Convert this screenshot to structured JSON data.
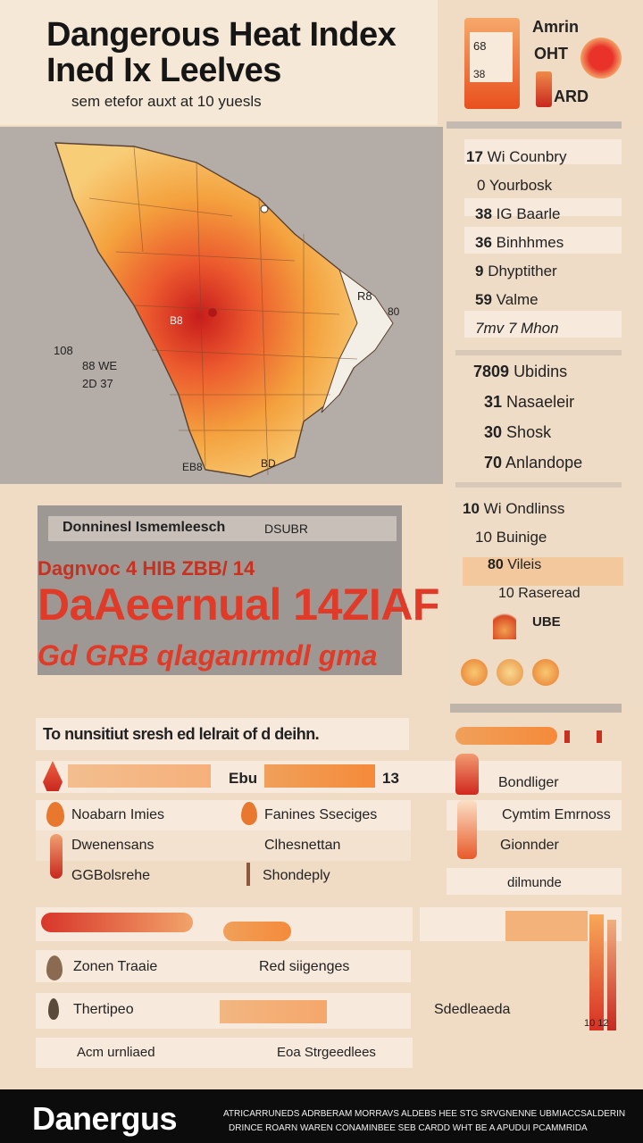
{
  "header": {
    "title_line1": "Dangerous Heat Index",
    "title_line2": "Ined Ix Leelves",
    "subtitle": "sem etefor auxt at 10 yuesls",
    "badge_top": "Amrin",
    "badge_mid": "OHT",
    "badge_bottom": "ARD",
    "badge_nums": [
      "68",
      "38"
    ]
  },
  "map": {
    "labels": [
      "108",
      "88 WE",
      "2D 37",
      "R8",
      "80",
      "B8",
      "EB8",
      "BD"
    ]
  },
  "right_list": {
    "group1": [
      {
        "num": "17",
        "text": "Wi Counbry"
      },
      {
        "num": "0",
        "text": "Yourbosk"
      },
      {
        "num": "38",
        "text": "IG Baarle"
      },
      {
        "num": "36",
        "text": "Binhhmes"
      },
      {
        "num": "9",
        "text": "Dhyptither"
      },
      {
        "num": "59",
        "text": "Valme"
      },
      {
        "num": "7mv",
        "text": "7 Mhon"
      }
    ],
    "group2": [
      {
        "num": "7809",
        "text": "Ubidins"
      },
      {
        "num": "31",
        "text": "Nasaeleir"
      },
      {
        "num": "30",
        "text": "Shosk"
      },
      {
        "num": "70",
        "text": "Anlandope"
      }
    ],
    "group3": [
      {
        "num": "10",
        "text": "Wi Ondlinss"
      },
      {
        "num": "10",
        "text": "Buinige"
      },
      {
        "num": "80",
        "text": "Vileis"
      },
      {
        "num": "10",
        "text": "Raseread"
      },
      {
        "num": "",
        "text": "UBE"
      }
    ]
  },
  "alert": {
    "heading": "Donninesl Ismemleesch",
    "heading_right": "DSUBR",
    "line1": "Dagnvoc 4 HIB ZBB/ 14",
    "big": "DaAeernual 14ZIAF",
    "line3": "Gd GRB qlaganrmdl gma"
  },
  "section": {
    "banner": "To nunsitiut sresh ed lelrait of d deihn.",
    "mid_label": "Ebu",
    "mid_num": "13",
    "rows_left": [
      "Noabarn Imies",
      "Dwenensans",
      "GGBolsrehe"
    ],
    "rows_mid": [
      "Fanines Sseciges",
      "Clhesnettan",
      "Shondeply"
    ],
    "rows_right": [
      "Bondliger",
      "Cymtim Emrnoss",
      "Gionnder",
      "dilmunde"
    ],
    "rows_bottom_left": [
      "Zonen Traaie",
      "Thertipeo",
      "Acm urnliaed"
    ],
    "rows_bottom_mid": [
      "Red siigenges",
      "Eoa Strgeedlees"
    ],
    "rows_bottom_right": [
      "Sdedleaeda",
      "10 12"
    ]
  },
  "footer": {
    "brand": "Danergus",
    "fine_line1": "ATRICARRUNEDS ADRBERAM MORRAVS ALDEBS HEE STG SRVGNENNE UBMIACCSALDERIN",
    "fine_line2": "DRINCE ROARN WAREN CONAMINBEE SEB CARDD WHT BE A APUDUI PCAMMRIDA"
  }
}
